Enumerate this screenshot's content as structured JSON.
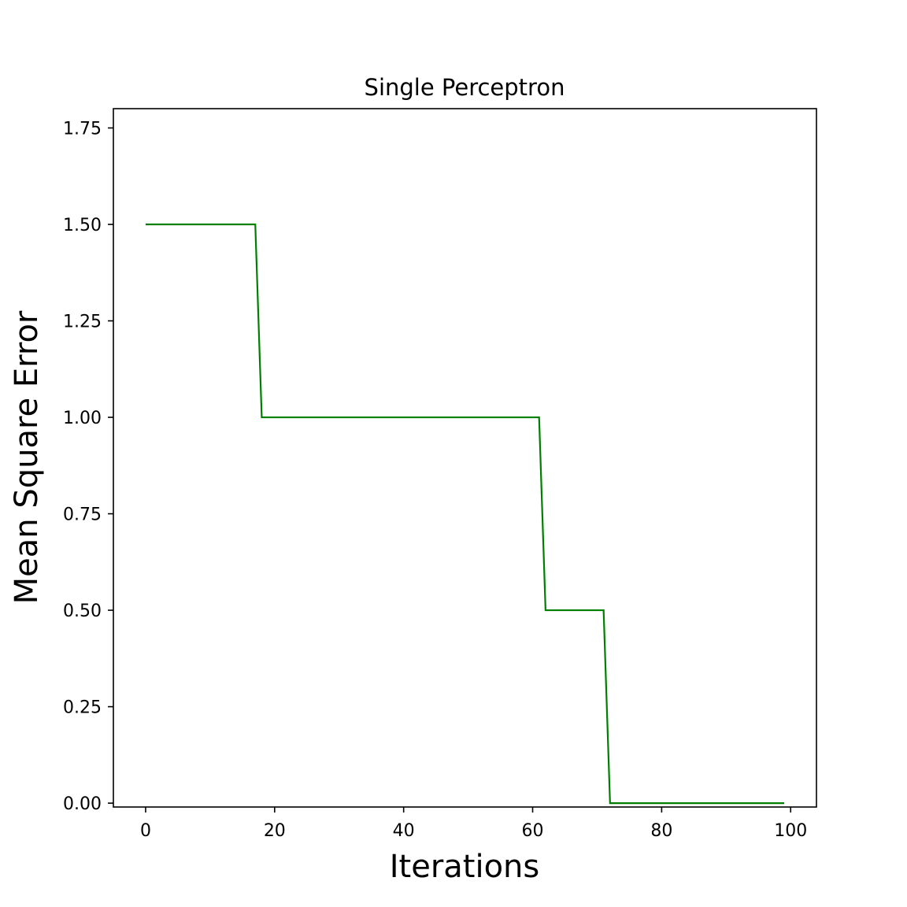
{
  "chart_data": {
    "type": "line",
    "title": "Single Perceptron",
    "xlabel": "Iterations",
    "ylabel": "Mean Square Error",
    "xlim": [
      -5,
      104
    ],
    "ylim": [
      -0.01,
      1.8
    ],
    "xticks": [
      0,
      20,
      40,
      60,
      80,
      100
    ],
    "xtick_labels": [
      "0",
      "20",
      "40",
      "60",
      "80",
      "100"
    ],
    "yticks": [
      0.0,
      0.25,
      0.5,
      0.75,
      1.0,
      1.25,
      1.5,
      1.75
    ],
    "ytick_labels": [
      "0.00",
      "0.25",
      "0.50",
      "0.75",
      "1.00",
      "1.25",
      "1.50",
      "1.75"
    ],
    "grid": false,
    "series": [
      {
        "color": "#008000",
        "x": [
          0,
          17,
          18,
          61,
          62,
          71,
          72,
          99
        ],
        "y": [
          1.5,
          1.5,
          1.0,
          1.0,
          0.5,
          0.5,
          0.0,
          0.0
        ]
      }
    ]
  }
}
